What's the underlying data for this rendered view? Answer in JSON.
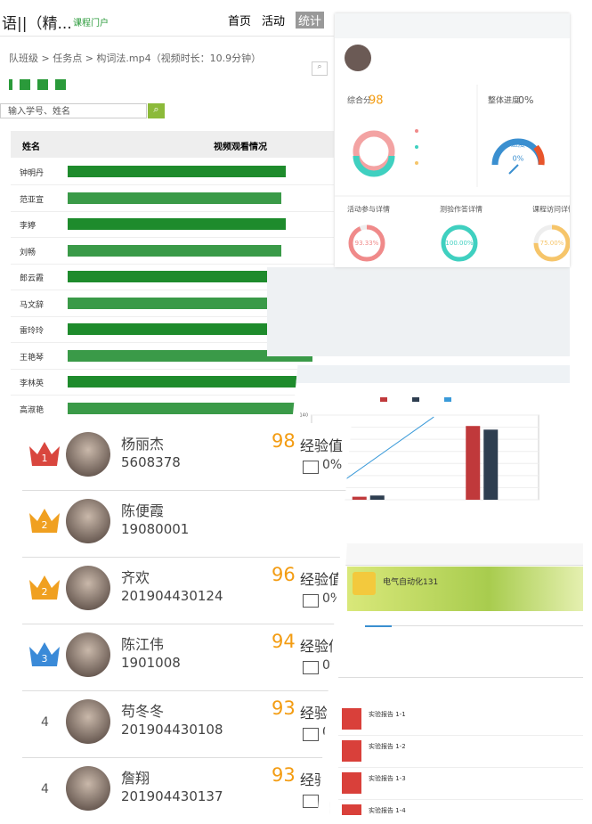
{
  "header": {
    "title": "语||（精...",
    "portal": "课程门户",
    "nav": [
      "首页",
      "活动",
      "统计"
    ]
  },
  "breadcrumb": "队班级 > 任务点 > 构词法.mp4（视频时长：10.9分钟）",
  "search_placeholder": "输入学号、姓名",
  "table": {
    "columns": [
      "姓名",
      "视频观看情况"
    ],
    "rows": [
      "钟明丹",
      "范亚宣",
      "李婷",
      "刘畅",
      "郎云霞",
      "马文辞",
      "雷玲玲",
      "王艳琴",
      "李林英",
      "高淑艳"
    ]
  },
  "stats": {
    "score_label": "综合分",
    "score": 98,
    "progress_label": "整体进度",
    "progress": "0%",
    "gauge_label": "进度",
    "gauge_value": "0%",
    "donuts": [
      {
        "title": "活动参与详情",
        "value": 93.33,
        "value_label": "93.33%",
        "color": "#f08a8a"
      },
      {
        "title": "测验作答详情",
        "value": 100,
        "value_label": "100.00%",
        "color": "#3fd0c0"
      },
      {
        "title": "课程访问详情",
        "value": 75,
        "value_label": "75.00%",
        "color": "#f6c56a"
      }
    ]
  },
  "chart_data": {
    "type": "bar",
    "categories": [
      null,
      null
    ],
    "series": [
      {
        "color": "#c0393b",
        "values": [
          5,
          122
        ]
      },
      {
        "color": "#2e3e50",
        "values": [
          7,
          116
        ]
      },
      {
        "type": "line",
        "color": "#3a9ad9",
        "values": [
          0,
          137
        ]
      }
    ],
    "ylim": [
      0,
      140
    ],
    "yticks": [
      0,
      20,
      40,
      60,
      80,
      100,
      120,
      140
    ]
  },
  "ranking": [
    {
      "rank": "1",
      "name": "杨丽杰",
      "id": "5608378",
      "score": 98
    },
    {
      "rank": "2",
      "name": "陈便霞",
      "id": "19080001"
    },
    {
      "rank": "2",
      "name": "齐欢",
      "id": "201904430124",
      "score": 96
    },
    {
      "rank": "3",
      "name": "陈江伟",
      "id": "1901008",
      "score": 94
    },
    {
      "rank": "4",
      "name": "苟冬冬",
      "id": "201904430108",
      "score": 93
    },
    {
      "rank": "4",
      "name": "詹翔",
      "id": "201904430137",
      "score": 93
    }
  ],
  "exp_label": "经验值",
  "exp_rate": "0%",
  "course": {
    "title": "电气自动化131",
    "files": [
      "实验报告 1-1",
      "实验报告 1-2",
      "实验报告 1-3",
      "实验报告 1-4"
    ]
  }
}
